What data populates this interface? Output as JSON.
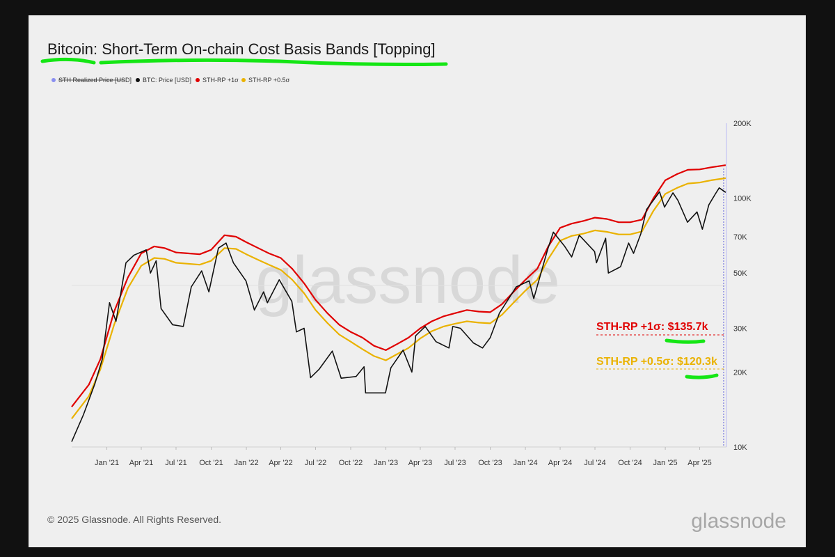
{
  "colors": {
    "sth_realized_price": "#8a8ff0",
    "btc_price": "#111111",
    "sth_rp_plus_1s": "#e00000",
    "sth_rp_plus_05s": "#eab200",
    "highlight": "#15e615"
  },
  "chart_data": {
    "type": "line",
    "title": "Bitcoin: Short-Term On-chain Cost Basis Bands [Topping]",
    "y_scale": "log",
    "ylim": [
      10000,
      200000
    ],
    "y_ticks": [
      {
        "value": 10000,
        "label": "10K"
      },
      {
        "value": 20000,
        "label": "20K"
      },
      {
        "value": 30000,
        "label": "30K"
      },
      {
        "value": 50000,
        "label": "50K"
      },
      {
        "value": 70000,
        "label": "70K"
      },
      {
        "value": 100000,
        "label": "100K"
      },
      {
        "value": 200000,
        "label": "200K"
      }
    ],
    "xlim": [
      "2020-10-01",
      "2025-06-10"
    ],
    "x_ticks": [
      {
        "date": "2021-01-01",
        "label": "Jan '21"
      },
      {
        "date": "2021-04-01",
        "label": "Apr '21"
      },
      {
        "date": "2021-07-01",
        "label": "Jul '21"
      },
      {
        "date": "2021-10-01",
        "label": "Oct '21"
      },
      {
        "date": "2022-01-01",
        "label": "Jan '22"
      },
      {
        "date": "2022-04-01",
        "label": "Apr '22"
      },
      {
        "date": "2022-07-01",
        "label": "Jul '22"
      },
      {
        "date": "2022-10-01",
        "label": "Oct '22"
      },
      {
        "date": "2023-01-01",
        "label": "Jan '23"
      },
      {
        "date": "2023-04-01",
        "label": "Apr '23"
      },
      {
        "date": "2023-07-01",
        "label": "Jul '23"
      },
      {
        "date": "2023-10-01",
        "label": "Oct '23"
      },
      {
        "date": "2024-01-01",
        "label": "Jan '24"
      },
      {
        "date": "2024-04-01",
        "label": "Apr '24"
      },
      {
        "date": "2024-07-01",
        "label": "Jul '24"
      },
      {
        "date": "2024-10-01",
        "label": "Oct '24"
      },
      {
        "date": "2025-01-01",
        "label": "Jan '25"
      },
      {
        "date": "2025-04-01",
        "label": "Apr '25"
      }
    ],
    "legend": [
      {
        "key": "sth_realized_price",
        "label": "STH Realized Price [USD]",
        "hidden": true
      },
      {
        "key": "btc_price",
        "label": "BTC: Price [USD]"
      },
      {
        "key": "sth_rp_plus_1s",
        "label": "STH-RP +1σ"
      },
      {
        "key": "sth_rp_plus_05s",
        "label": "STH-RP +0.5σ"
      }
    ],
    "legend_position": "top-left",
    "grid": false,
    "annotations": [
      {
        "series": "sth_rp_plus_1s",
        "text": "STH-RP +1σ: $135.7k"
      },
      {
        "series": "sth_rp_plus_05s",
        "text": "STH-RP +0.5σ: $120.3k"
      }
    ],
    "series": [
      {
        "key": "btc_price",
        "name": "BTC: Price [USD]",
        "points": [
          [
            "2020-10-01",
            10500
          ],
          [
            "2020-11-01",
            13500
          ],
          [
            "2020-12-01",
            18000
          ],
          [
            "2020-12-20",
            22500
          ],
          [
            "2021-01-08",
            38000
          ],
          [
            "2021-01-25",
            32000
          ],
          [
            "2021-02-20",
            55000
          ],
          [
            "2021-03-13",
            59000
          ],
          [
            "2021-04-14",
            62000
          ],
          [
            "2021-04-25",
            50000
          ],
          [
            "2021-05-10",
            56000
          ],
          [
            "2021-05-23",
            36000
          ],
          [
            "2021-06-22",
            31000
          ],
          [
            "2021-07-20",
            30500
          ],
          [
            "2021-08-10",
            44000
          ],
          [
            "2021-09-06",
            51000
          ],
          [
            "2021-09-25",
            42000
          ],
          [
            "2021-10-20",
            63000
          ],
          [
            "2021-11-09",
            66000
          ],
          [
            "2021-11-28",
            55000
          ],
          [
            "2021-12-31",
            46500
          ],
          [
            "2022-01-22",
            35500
          ],
          [
            "2022-02-15",
            42000
          ],
          [
            "2022-02-25",
            38000
          ],
          [
            "2022-03-28",
            47000
          ],
          [
            "2022-04-30",
            38500
          ],
          [
            "2022-05-12",
            29000
          ],
          [
            "2022-06-01",
            30000
          ],
          [
            "2022-06-18",
            19000
          ],
          [
            "2022-07-10",
            20500
          ],
          [
            "2022-08-14",
            24300
          ],
          [
            "2022-09-06",
            18900
          ],
          [
            "2022-10-15",
            19200
          ],
          [
            "2022-11-05",
            21000
          ],
          [
            "2022-11-09",
            16500
          ],
          [
            "2022-12-31",
            16500
          ],
          [
            "2023-01-14",
            20800
          ],
          [
            "2023-02-15",
            24500
          ],
          [
            "2023-03-10",
            20000
          ],
          [
            "2023-03-20",
            28000
          ],
          [
            "2023-04-14",
            30500
          ],
          [
            "2023-05-12",
            26500
          ],
          [
            "2023-06-15",
            25000
          ],
          [
            "2023-06-25",
            30500
          ],
          [
            "2023-07-15",
            30000
          ],
          [
            "2023-08-18",
            26200
          ],
          [
            "2023-09-11",
            25000
          ],
          [
            "2023-10-01",
            27500
          ],
          [
            "2023-10-25",
            34500
          ],
          [
            "2023-12-08",
            44000
          ],
          [
            "2024-01-11",
            46500
          ],
          [
            "2024-01-23",
            39500
          ],
          [
            "2024-02-28",
            62000
          ],
          [
            "2024-03-14",
            73000
          ],
          [
            "2024-04-13",
            64000
          ],
          [
            "2024-05-01",
            58000
          ],
          [
            "2024-05-21",
            71000
          ],
          [
            "2024-06-30",
            61000
          ],
          [
            "2024-07-05",
            55000
          ],
          [
            "2024-07-29",
            69000
          ],
          [
            "2024-08-05",
            50000
          ],
          [
            "2024-09-06",
            53000
          ],
          [
            "2024-09-27",
            66000
          ],
          [
            "2024-10-10",
            60000
          ],
          [
            "2024-10-29",
            72000
          ],
          [
            "2024-11-13",
            90000
          ],
          [
            "2024-12-17",
            106000
          ],
          [
            "2024-12-30",
            92000
          ],
          [
            "2025-01-21",
            105000
          ],
          [
            "2025-02-03",
            98000
          ],
          [
            "2025-02-28",
            80000
          ],
          [
            "2025-03-25",
            88000
          ],
          [
            "2025-04-08",
            75000
          ],
          [
            "2025-04-25",
            94000
          ],
          [
            "2025-05-12",
            104000
          ],
          [
            "2025-05-22",
            110000
          ],
          [
            "2025-06-08",
            105500
          ]
        ]
      },
      {
        "key": "sth_rp_plus_1s",
        "name": "STH-RP +1σ",
        "points": [
          [
            "2020-10-01",
            14500
          ],
          [
            "2020-11-15",
            17800
          ],
          [
            "2020-12-15",
            22500
          ],
          [
            "2021-01-20",
            35000
          ],
          [
            "2021-02-25",
            48000
          ],
          [
            "2021-04-01",
            60000
          ],
          [
            "2021-05-05",
            64000
          ],
          [
            "2021-06-01",
            63000
          ],
          [
            "2021-07-01",
            60500
          ],
          [
            "2021-08-01",
            60000
          ],
          [
            "2021-09-01",
            59500
          ],
          [
            "2021-10-01",
            62000
          ],
          [
            "2021-11-05",
            71000
          ],
          [
            "2021-12-05",
            70000
          ],
          [
            "2022-01-01",
            66500
          ],
          [
            "2022-02-01",
            63000
          ],
          [
            "2022-03-01",
            60000
          ],
          [
            "2022-04-01",
            57500
          ],
          [
            "2022-05-01",
            52000
          ],
          [
            "2022-06-01",
            45500
          ],
          [
            "2022-07-01",
            39000
          ],
          [
            "2022-08-01",
            34500
          ],
          [
            "2022-09-01",
            31000
          ],
          [
            "2022-10-01",
            29000
          ],
          [
            "2022-11-01",
            27500
          ],
          [
            "2022-12-01",
            25500
          ],
          [
            "2023-01-01",
            24500
          ],
          [
            "2023-02-01",
            26000
          ],
          [
            "2023-03-01",
            27500
          ],
          [
            "2023-04-01",
            30000
          ],
          [
            "2023-05-01",
            32000
          ],
          [
            "2023-06-01",
            33500
          ],
          [
            "2023-07-01",
            34500
          ],
          [
            "2023-08-01",
            35500
          ],
          [
            "2023-09-01",
            35000
          ],
          [
            "2023-10-01",
            34800
          ],
          [
            "2023-11-01",
            37500
          ],
          [
            "2023-12-01",
            42000
          ],
          [
            "2024-01-01",
            47000
          ],
          [
            "2024-02-01",
            52000
          ],
          [
            "2024-03-01",
            64000
          ],
          [
            "2024-04-01",
            76000
          ],
          [
            "2024-05-01",
            79000
          ],
          [
            "2024-06-01",
            81000
          ],
          [
            "2024-07-01",
            83500
          ],
          [
            "2024-08-01",
            82500
          ],
          [
            "2024-09-01",
            80000
          ],
          [
            "2024-10-01",
            80000
          ],
          [
            "2024-11-01",
            82000
          ],
          [
            "2024-12-01",
            100000
          ],
          [
            "2025-01-01",
            118000
          ],
          [
            "2025-02-01",
            125000
          ],
          [
            "2025-03-01",
            130000
          ],
          [
            "2025-04-01",
            130500
          ],
          [
            "2025-05-01",
            133000
          ],
          [
            "2025-06-08",
            135700
          ]
        ]
      },
      {
        "key": "sth_rp_plus_05s",
        "name": "STH-RP +0.5σ",
        "points": [
          [
            "2020-10-01",
            13000
          ],
          [
            "2020-11-15",
            16000
          ],
          [
            "2020-12-15",
            20500
          ],
          [
            "2021-01-20",
            31000
          ],
          [
            "2021-02-25",
            43500
          ],
          [
            "2021-04-01",
            53500
          ],
          [
            "2021-05-05",
            57500
          ],
          [
            "2021-06-01",
            57000
          ],
          [
            "2021-07-01",
            55000
          ],
          [
            "2021-08-01",
            54500
          ],
          [
            "2021-09-01",
            54000
          ],
          [
            "2021-10-01",
            56000
          ],
          [
            "2021-11-05",
            63000
          ],
          [
            "2021-12-05",
            62500
          ],
          [
            "2022-01-01",
            59500
          ],
          [
            "2022-02-01",
            56500
          ],
          [
            "2022-03-01",
            54000
          ],
          [
            "2022-04-01",
            51500
          ],
          [
            "2022-05-01",
            47000
          ],
          [
            "2022-06-01",
            41500
          ],
          [
            "2022-07-01",
            35500
          ],
          [
            "2022-08-01",
            31500
          ],
          [
            "2022-09-01",
            28300
          ],
          [
            "2022-10-01",
            26500
          ],
          [
            "2022-11-01",
            24700
          ],
          [
            "2022-12-01",
            23200
          ],
          [
            "2023-01-01",
            22300
          ],
          [
            "2023-02-01",
            23700
          ],
          [
            "2023-03-01",
            25000
          ],
          [
            "2023-04-01",
            27300
          ],
          [
            "2023-05-01",
            29200
          ],
          [
            "2023-06-01",
            30500
          ],
          [
            "2023-07-01",
            31300
          ],
          [
            "2023-08-01",
            32000
          ],
          [
            "2023-09-01",
            31600
          ],
          [
            "2023-10-01",
            31400
          ],
          [
            "2023-11-01",
            34000
          ],
          [
            "2023-12-01",
            38000
          ],
          [
            "2024-01-01",
            42500
          ],
          [
            "2024-02-01",
            47000
          ],
          [
            "2024-03-01",
            57000
          ],
          [
            "2024-04-01",
            67500
          ],
          [
            "2024-05-01",
            70500
          ],
          [
            "2024-06-01",
            72000
          ],
          [
            "2024-07-01",
            74200
          ],
          [
            "2024-08-01",
            73200
          ],
          [
            "2024-09-01",
            71500
          ],
          [
            "2024-10-01",
            71500
          ],
          [
            "2024-11-01",
            73500
          ],
          [
            "2024-12-01",
            89000
          ],
          [
            "2025-01-01",
            104000
          ],
          [
            "2025-02-01",
            110000
          ],
          [
            "2025-03-01",
            114500
          ],
          [
            "2025-04-01",
            115500
          ],
          [
            "2025-05-01",
            118000
          ],
          [
            "2025-06-08",
            120300
          ]
        ]
      }
    ]
  },
  "watermark": "glassnode",
  "footer": {
    "copyright": "© 2025 Glassnode. All Rights Reserved.",
    "logo": "glassnode"
  }
}
